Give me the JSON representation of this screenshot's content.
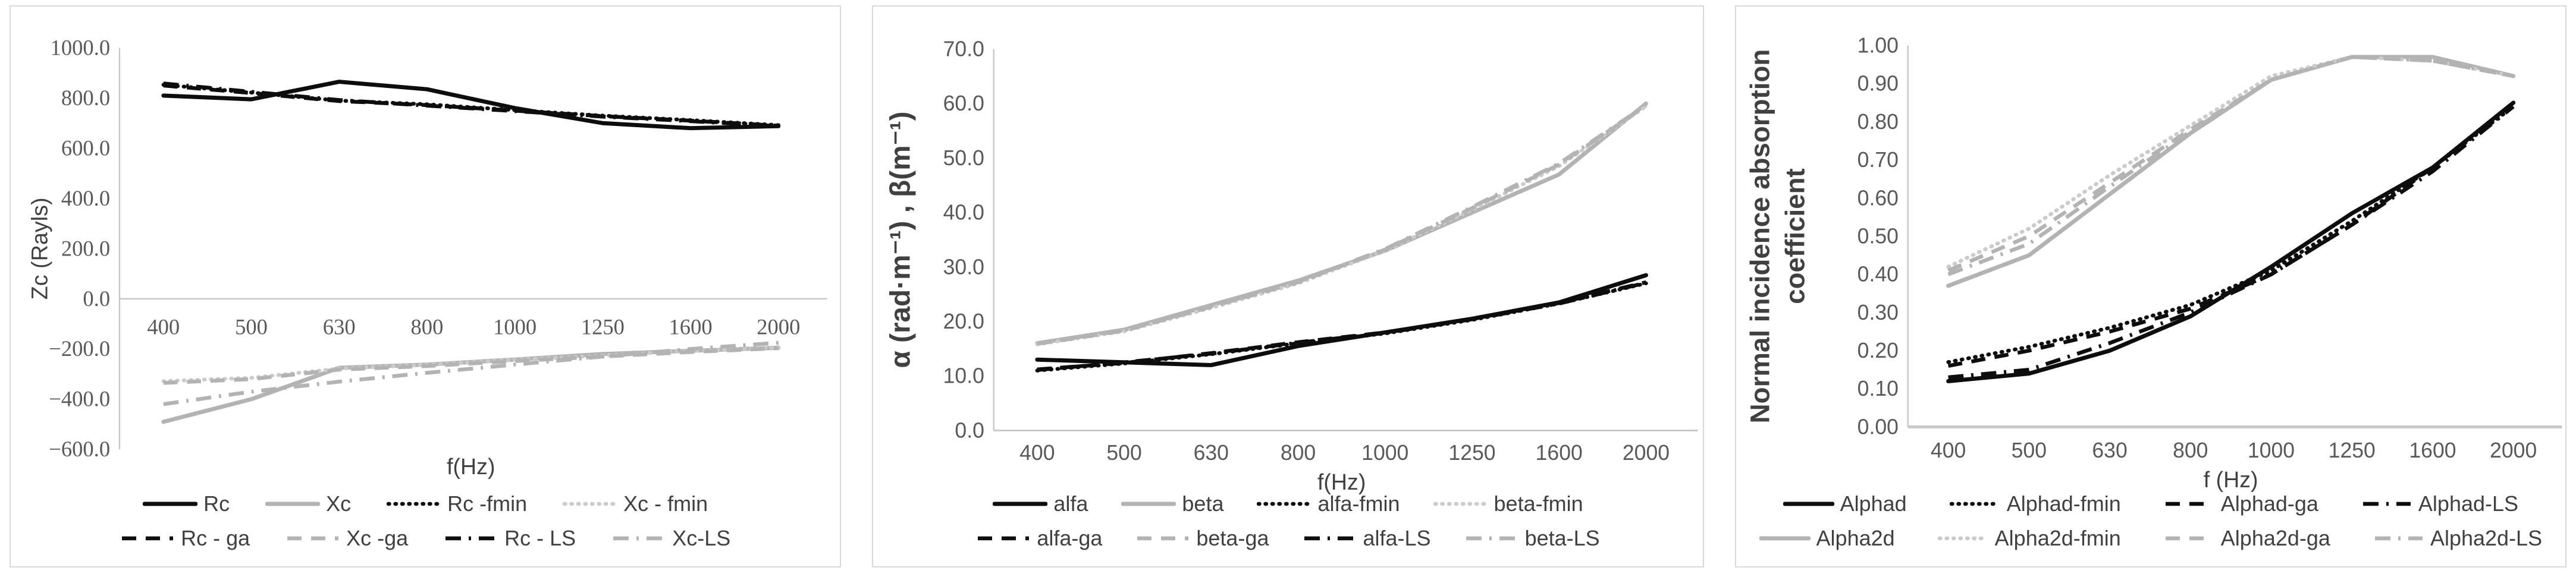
{
  "figure": {
    "background": "#ffffff",
    "panel_border_color": "#d9d9d9",
    "tick_text_color": "#595959",
    "label_text_color": "#404040",
    "axis_line_color": "#c8c8c8",
    "black_series_color": "#0d0d0d",
    "gray_series_color": "#b3b3b3",
    "gray_dotted_color": "#cbcbcb"
  },
  "chart_data": [
    {
      "type": "line",
      "title": "",
      "xlabel": "f(Hz)",
      "ylabel": "Zc (Rayls)",
      "categories": [
        "400",
        "500",
        "630",
        "800",
        "1000",
        "1250",
        "1600",
        "2000"
      ],
      "ylim": [
        -600,
        1000
      ],
      "ytick_values": [
        1000,
        800,
        600,
        400,
        200,
        0,
        -200,
        -400,
        -600
      ],
      "ytick_labels": [
        "1000.0",
        "800.0",
        "600.0",
        "400.0",
        "200.0",
        "0.0",
        "−200.0",
        "−400.0",
        "−600.0"
      ],
      "grid": false,
      "zero_line": true,
      "legend_position": "bottom",
      "series": [
        {
          "name": "Rc",
          "color": "black",
          "style": "solid",
          "values": [
            810,
            795,
            865,
            835,
            760,
            700,
            680,
            688
          ]
        },
        {
          "name": "Xc",
          "color": "gray",
          "style": "solid",
          "values": [
            -490,
            -400,
            -275,
            -262,
            -242,
            -220,
            -207,
            -195
          ]
        },
        {
          "name": "Rc -fmin",
          "color": "black",
          "style": "dotted",
          "values": [
            853,
            822,
            790,
            775,
            752,
            730,
            712,
            692
          ]
        },
        {
          "name": "Xc - fmin",
          "color": "gray",
          "style": "dotted",
          "values": [
            -328,
            -315,
            -278,
            -263,
            -243,
            -226,
            -208,
            -193
          ]
        },
        {
          "name": "Rc - ga",
          "color": "black",
          "style": "dashed",
          "values": [
            850,
            820,
            788,
            772,
            750,
            728,
            710,
            690
          ]
        },
        {
          "name": "Xc -ga",
          "color": "gray",
          "style": "dashed",
          "values": [
            -335,
            -320,
            -282,
            -268,
            -248,
            -230,
            -212,
            -197
          ]
        },
        {
          "name": "Rc - LS",
          "color": "black",
          "style": "dashdot",
          "values": [
            858,
            825,
            792,
            770,
            748,
            726,
            708,
            688
          ]
        },
        {
          "name": "Xc-LS",
          "color": "gray",
          "style": "dashdot",
          "values": [
            -420,
            -370,
            -330,
            -295,
            -262,
            -230,
            -200,
            -175
          ]
        }
      ],
      "legend_rows": [
        [
          "Rc",
          "Xc",
          "Rc -fmin",
          "Xc - fmin"
        ],
        [
          "Rc - ga",
          "Xc -ga",
          "Rc - LS",
          "Xc-LS"
        ]
      ]
    },
    {
      "type": "line",
      "title": "",
      "xlabel": "f(Hz)",
      "ylabel": "α (rad·m⁻¹) , β(m⁻¹)",
      "categories": [
        "400",
        "500",
        "630",
        "800",
        "1000",
        "1250",
        "1600",
        "2000"
      ],
      "ylim": [
        0,
        70
      ],
      "ytick_values": [
        70,
        60,
        50,
        40,
        30,
        20,
        10,
        0
      ],
      "ytick_labels": [
        "70.0",
        "60.0",
        "50.0",
        "40.0",
        "30.0",
        "20.0",
        "10.0",
        "0.0"
      ],
      "grid": false,
      "zero_line": false,
      "legend_position": "bottom",
      "series": [
        {
          "name": "alfa",
          "color": "black",
          "style": "solid",
          "values": [
            13,
            12.5,
            12,
            15.5,
            18,
            20.5,
            23.5,
            28.5
          ]
        },
        {
          "name": "beta",
          "color": "gray",
          "style": "solid",
          "values": [
            16,
            18.5,
            23,
            27.5,
            33,
            40,
            47,
            60
          ]
        },
        {
          "name": "alfa-fmin",
          "color": "black",
          "style": "dotted",
          "values": [
            11,
            12.3,
            14,
            16,
            17.8,
            20.3,
            23.3,
            27
          ]
        },
        {
          "name": "beta-fmin",
          "color": "gray",
          "style": "dotted",
          "values": [
            15.8,
            18.2,
            22.5,
            27,
            33,
            40.5,
            48.5,
            59.5
          ]
        },
        {
          "name": "alfa-ga",
          "color": "black",
          "style": "dashed",
          "values": [
            11.2,
            12.4,
            14.2,
            16.2,
            18,
            20.5,
            23.4,
            27.2
          ]
        },
        {
          "name": "beta-ga",
          "color": "gray",
          "style": "dashed",
          "values": [
            15.9,
            18.3,
            22.7,
            27.2,
            33.2,
            40.8,
            48.8,
            59.6
          ]
        },
        {
          "name": "alfa-LS",
          "color": "black",
          "style": "dashdot",
          "values": [
            11.1,
            12.5,
            14.1,
            16.1,
            17.9,
            20.4,
            23.3,
            27.1
          ]
        },
        {
          "name": "beta-LS",
          "color": "gray",
          "style": "dashdot",
          "values": [
            16,
            18.4,
            22.8,
            27.3,
            33.3,
            41,
            49,
            59.7
          ]
        }
      ],
      "legend_rows": [
        [
          "alfa",
          "beta",
          "alfa-fmin",
          "beta-fmin"
        ],
        [
          "alfa-ga",
          "beta-ga",
          "alfa-LS",
          "beta-LS"
        ]
      ]
    },
    {
      "type": "line",
      "title": "",
      "xlabel": "f (Hz)",
      "ylabel": "Normal incidence absorption coefficient",
      "ylabel_lines": [
        "Normal incidence absorption",
        "coefficient"
      ],
      "categories": [
        "400",
        "500",
        "630",
        "800",
        "1000",
        "1250",
        "1600",
        "2000"
      ],
      "ylim": [
        0,
        1
      ],
      "ytick_values": [
        1.0,
        0.9,
        0.8,
        0.7,
        0.6,
        0.5,
        0.4,
        0.3,
        0.2,
        0.1,
        0.0
      ],
      "ytick_labels": [
        "1.00",
        "0.90",
        "0.80",
        "0.70",
        "0.60",
        "0.50",
        "0.40",
        "0.30",
        "0.20",
        "0.10",
        "0.00"
      ],
      "grid": false,
      "zero_line": false,
      "legend_position": "bottom",
      "series": [
        {
          "name": "Alphad",
          "color": "black",
          "style": "solid",
          "values": [
            0.12,
            0.14,
            0.2,
            0.29,
            0.42,
            0.56,
            0.68,
            0.85
          ]
        },
        {
          "name": "Alphad-fmin",
          "color": "black",
          "style": "dotted",
          "values": [
            0.17,
            0.21,
            0.26,
            0.32,
            0.41,
            0.54,
            0.68,
            0.84
          ]
        },
        {
          "name": "Alphad-ga",
          "color": "black",
          "style": "dashed",
          "values": [
            0.16,
            0.2,
            0.25,
            0.31,
            0.4,
            0.53,
            0.68,
            0.85
          ]
        },
        {
          "name": "Alphad-LS",
          "color": "black",
          "style": "dashdot",
          "values": [
            0.13,
            0.15,
            0.22,
            0.3,
            0.4,
            0.53,
            0.67,
            0.84
          ]
        },
        {
          "name": "Alpha2d",
          "color": "gray",
          "style": "solid",
          "values": [
            0.37,
            0.45,
            0.61,
            0.77,
            0.91,
            0.97,
            0.97,
            0.92
          ]
        },
        {
          "name": "Alpha2d-fmin",
          "color": "gray",
          "style": "dotted",
          "values": [
            0.42,
            0.52,
            0.66,
            0.79,
            0.92,
            0.97,
            0.96,
            0.92
          ]
        },
        {
          "name": "Alpha2d-ga",
          "color": "gray",
          "style": "dashed",
          "values": [
            0.41,
            0.5,
            0.64,
            0.78,
            0.91,
            0.97,
            0.96,
            0.92
          ]
        },
        {
          "name": "Alpha2d-LS",
          "color": "gray",
          "style": "dashdot",
          "values": [
            0.4,
            0.48,
            0.63,
            0.775,
            0.91,
            0.97,
            0.96,
            0.92
          ]
        }
      ],
      "legend_rows": [
        [
          "Alphad",
          "Alphad-fmin",
          "Alphad-ga",
          "Alphad-LS"
        ],
        [
          "Alpha2d",
          "Alpha2d-fmin",
          "Alpha2d-ga",
          "Alpha2d-LS"
        ]
      ]
    }
  ]
}
